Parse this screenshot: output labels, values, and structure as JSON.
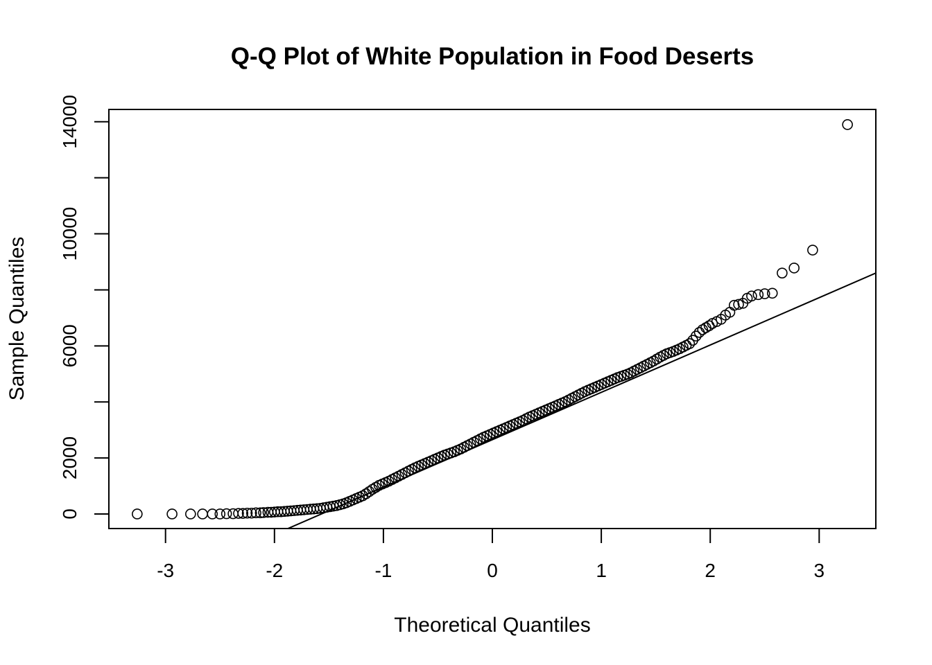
{
  "chart_data": {
    "type": "scatter",
    "title": "Q-Q Plot of White Population in Food Deserts",
    "xlabel": "Theoretical Quantiles",
    "ylabel": "Sample Quantiles",
    "xlim": [
      -3.52,
      3.52
    ],
    "ylim": [
      -520,
      14440
    ],
    "x_ticks": [
      -3,
      -2,
      -1,
      0,
      1,
      2,
      3
    ],
    "x_tick_labels": [
      "-3",
      "-2",
      "-1",
      "0",
      "1",
      "2",
      "3"
    ],
    "y_ticks": [
      0,
      2000,
      4000,
      6000,
      8000,
      10000,
      12000,
      14000
    ],
    "y_tick_labels": [
      "0",
      "2000",
      "",
      "6000",
      "",
      "10000",
      "",
      "14000"
    ],
    "grid": false,
    "reference_line": {
      "x": [
        -1.9,
        3.52
      ],
      "y": [
        -560,
        8600
      ]
    },
    "series": [
      {
        "marker": "open-circle",
        "points": [
          [
            -3.26,
            0
          ],
          [
            -2.94,
            0
          ],
          [
            -2.77,
            0
          ],
          [
            -2.66,
            0
          ],
          [
            -2.57,
            0
          ],
          [
            -2.5,
            0
          ],
          [
            -2.44,
            10
          ],
          [
            -2.38,
            10
          ],
          [
            -2.33,
            20
          ],
          [
            -2.29,
            20
          ],
          [
            -2.25,
            30
          ],
          [
            -2.21,
            30
          ],
          [
            -2.17,
            40
          ],
          [
            -2.13,
            40
          ],
          [
            -2.1,
            50
          ],
          [
            -2.06,
            60
          ],
          [
            -2.03,
            60
          ],
          [
            -2.0,
            70
          ],
          [
            -1.97,
            80
          ],
          [
            -1.94,
            80
          ],
          [
            -1.91,
            90
          ],
          [
            -1.88,
            100
          ],
          [
            -1.85,
            110
          ],
          [
            -1.82,
            120
          ],
          [
            -1.79,
            130
          ],
          [
            -1.76,
            140
          ],
          [
            -1.73,
            150
          ],
          [
            -1.7,
            160
          ],
          [
            -1.67,
            170
          ],
          [
            -1.64,
            180
          ],
          [
            -1.61,
            190
          ],
          [
            -1.58,
            200
          ],
          [
            -1.55,
            220
          ],
          [
            -1.52,
            240
          ],
          [
            -1.49,
            260
          ],
          [
            -1.46,
            280
          ],
          [
            -1.43,
            300
          ],
          [
            -1.4,
            330
          ],
          [
            -1.37,
            360
          ],
          [
            -1.34,
            400
          ],
          [
            -1.31,
            450
          ],
          [
            -1.28,
            500
          ],
          [
            -1.25,
            550
          ],
          [
            -1.22,
            600
          ],
          [
            -1.19,
            650
          ],
          [
            -1.16,
            720
          ],
          [
            -1.13,
            800
          ],
          [
            -1.1,
            880
          ],
          [
            -1.07,
            950
          ],
          [
            -1.04,
            1020
          ],
          [
            -1.01,
            1070
          ],
          [
            -0.98,
            1120
          ],
          [
            -0.95,
            1170
          ],
          [
            -0.92,
            1230
          ],
          [
            -0.89,
            1290
          ],
          [
            -0.86,
            1350
          ],
          [
            -0.83,
            1410
          ],
          [
            -0.8,
            1470
          ],
          [
            -0.77,
            1530
          ],
          [
            -0.74,
            1590
          ],
          [
            -0.71,
            1650
          ],
          [
            -0.68,
            1700
          ],
          [
            -0.65,
            1750
          ],
          [
            -0.62,
            1800
          ],
          [
            -0.59,
            1850
          ],
          [
            -0.56,
            1900
          ],
          [
            -0.53,
            1950
          ],
          [
            -0.5,
            2000
          ],
          [
            -0.47,
            2050
          ],
          [
            -0.44,
            2100
          ],
          [
            -0.41,
            2140
          ],
          [
            -0.38,
            2180
          ],
          [
            -0.35,
            2220
          ],
          [
            -0.32,
            2270
          ],
          [
            -0.29,
            2320
          ],
          [
            -0.26,
            2380
          ],
          [
            -0.23,
            2440
          ],
          [
            -0.2,
            2500
          ],
          [
            -0.17,
            2560
          ],
          [
            -0.14,
            2620
          ],
          [
            -0.11,
            2680
          ],
          [
            -0.08,
            2740
          ],
          [
            -0.05,
            2790
          ],
          [
            -0.02,
            2840
          ],
          [
            0.01,
            2890
          ],
          [
            0.04,
            2940
          ],
          [
            0.07,
            2990
          ],
          [
            0.1,
            3040
          ],
          [
            0.13,
            3090
          ],
          [
            0.16,
            3140
          ],
          [
            0.19,
            3190
          ],
          [
            0.22,
            3240
          ],
          [
            0.25,
            3290
          ],
          [
            0.28,
            3340
          ],
          [
            0.31,
            3400
          ],
          [
            0.34,
            3460
          ],
          [
            0.37,
            3510
          ],
          [
            0.4,
            3560
          ],
          [
            0.43,
            3610
          ],
          [
            0.46,
            3660
          ],
          [
            0.49,
            3710
          ],
          [
            0.52,
            3760
          ],
          [
            0.55,
            3810
          ],
          [
            0.58,
            3860
          ],
          [
            0.61,
            3910
          ],
          [
            0.64,
            3960
          ],
          [
            0.67,
            4010
          ],
          [
            0.7,
            4070
          ],
          [
            0.73,
            4130
          ],
          [
            0.76,
            4190
          ],
          [
            0.79,
            4250
          ],
          [
            0.82,
            4310
          ],
          [
            0.85,
            4370
          ],
          [
            0.88,
            4420
          ],
          [
            0.91,
            4470
          ],
          [
            0.94,
            4520
          ],
          [
            0.97,
            4570
          ],
          [
            1.0,
            4620
          ],
          [
            1.03,
            4670
          ],
          [
            1.06,
            4720
          ],
          [
            1.09,
            4770
          ],
          [
            1.12,
            4820
          ],
          [
            1.15,
            4870
          ],
          [
            1.18,
            4910
          ],
          [
            1.21,
            4950
          ],
          [
            1.24,
            4990
          ],
          [
            1.27,
            5040
          ],
          [
            1.3,
            5100
          ],
          [
            1.33,
            5160
          ],
          [
            1.36,
            5220
          ],
          [
            1.39,
            5280
          ],
          [
            1.42,
            5340
          ],
          [
            1.45,
            5400
          ],
          [
            1.48,
            5460
          ],
          [
            1.51,
            5530
          ],
          [
            1.54,
            5600
          ],
          [
            1.57,
            5660
          ],
          [
            1.6,
            5720
          ],
          [
            1.63,
            5760
          ],
          [
            1.66,
            5800
          ],
          [
            1.69,
            5850
          ],
          [
            1.72,
            5900
          ],
          [
            1.75,
            5960
          ],
          [
            1.78,
            6020
          ],
          [
            1.81,
            6080
          ],
          [
            1.84,
            6200
          ],
          [
            1.87,
            6350
          ],
          [
            1.9,
            6480
          ],
          [
            1.93,
            6580
          ],
          [
            1.96,
            6650
          ],
          [
            1.99,
            6720
          ],
          [
            2.02,
            6800
          ],
          [
            2.06,
            6870
          ],
          [
            2.1,
            6950
          ],
          [
            2.14,
            7100
          ],
          [
            2.18,
            7200
          ],
          [
            2.22,
            7450
          ],
          [
            2.26,
            7480
          ],
          [
            2.3,
            7520
          ],
          [
            2.34,
            7700
          ],
          [
            2.38,
            7780
          ],
          [
            2.44,
            7830
          ],
          [
            2.5,
            7860
          ],
          [
            2.57,
            7880
          ],
          [
            2.66,
            8600
          ],
          [
            2.77,
            8780
          ],
          [
            2.94,
            9420
          ],
          [
            3.26,
            13900
          ]
        ]
      }
    ]
  }
}
